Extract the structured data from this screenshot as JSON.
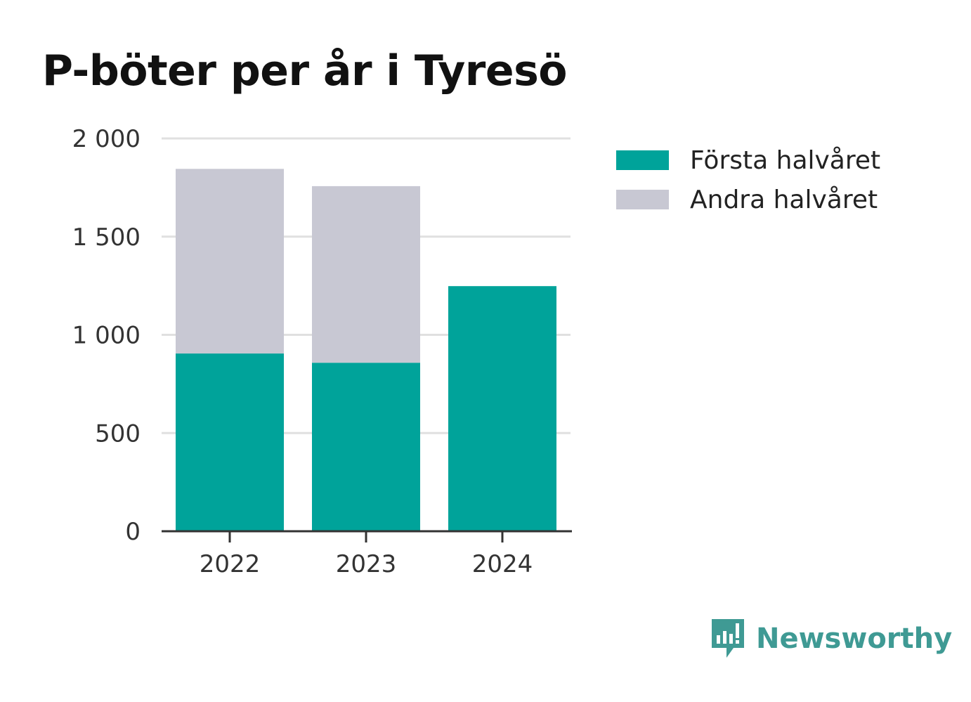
{
  "title": "P-böter per år i Tyresö",
  "colors": {
    "first_half": "#00a39a",
    "second_half": "#c8c8d3",
    "brand": "#3f9a94",
    "axis": "#333333",
    "grid": "#e0e0e0"
  },
  "legend": [
    {
      "label": "Första halvåret",
      "color": "#00a39a"
    },
    {
      "label": "Andra halvåret",
      "color": "#c8c8d3"
    }
  ],
  "brand": {
    "name": "Newsworthy",
    "icon": "newsworthy-logo-icon"
  },
  "chart_data": {
    "type": "bar",
    "stacked": true,
    "categories": [
      "2022",
      "2023",
      "2024"
    ],
    "series": [
      {
        "name": "Första halvåret",
        "values": [
          905,
          858,
          1248
        ],
        "color": "#00a39a"
      },
      {
        "name": "Andra halvåret",
        "values": [
          940,
          899,
          0
        ],
        "color": "#c8c8d3"
      }
    ],
    "title": "P-böter per år i Tyresö",
    "xlabel": "",
    "ylabel": "",
    "ylim": [
      0,
      2000
    ],
    "yticks": [
      0,
      500,
      1000,
      1500,
      2000
    ],
    "ytick_labels": [
      "0",
      "500",
      "1 000",
      "1 500",
      "2 000"
    ],
    "grid": true,
    "legend_position": "top-right"
  }
}
